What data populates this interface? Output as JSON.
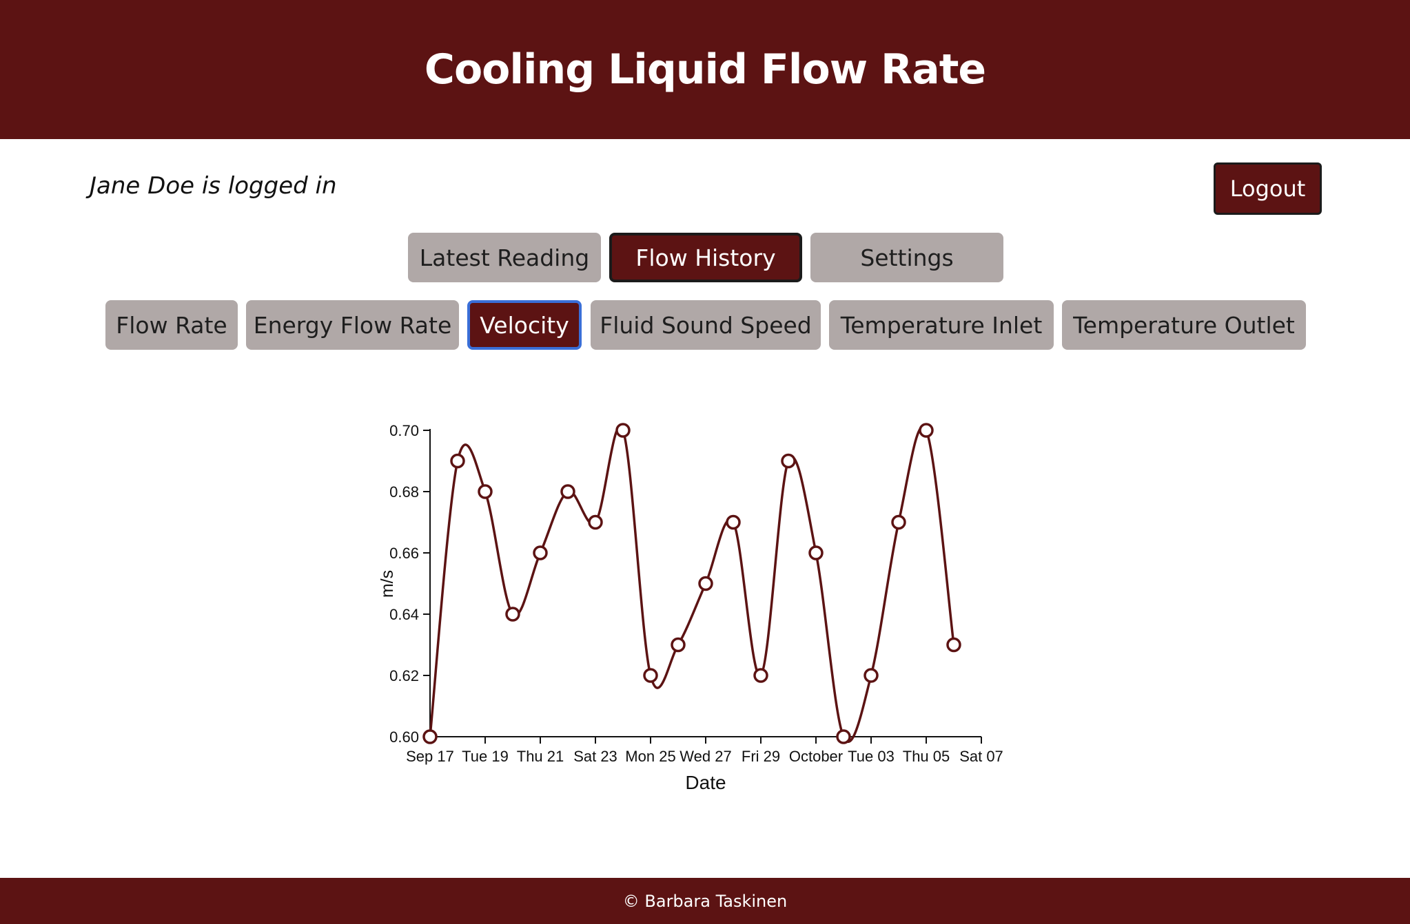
{
  "header": {
    "title": "Cooling Liquid Flow Rate"
  },
  "user": {
    "status_text": "Jane Doe is logged in",
    "logout_label": "Logout"
  },
  "main_tabs": [
    {
      "label": "Latest Reading",
      "active": false
    },
    {
      "label": "Flow History",
      "active": true
    },
    {
      "label": "Settings",
      "active": false
    }
  ],
  "metric_tabs": [
    {
      "label": "Flow Rate",
      "active": false
    },
    {
      "label": "Energy Flow Rate",
      "active": false
    },
    {
      "label": "Velocity",
      "active": true
    },
    {
      "label": "Fluid Sound Speed",
      "active": false
    },
    {
      "label": "Temperature Inlet",
      "active": false
    },
    {
      "label": "Temperature Outlet",
      "active": false
    }
  ],
  "colors": {
    "brand": "#5c1313",
    "inactive_button": "#b0a8a7",
    "focus_outline": "#3a6fd8"
  },
  "chart_data": {
    "type": "line",
    "xlabel": "Date",
    "ylabel": "m/s",
    "ylim": [
      0.6,
      0.7
    ],
    "yticks": [
      "0.60",
      "0.62",
      "0.64",
      "0.66",
      "0.68",
      "0.70"
    ],
    "xticks": [
      "Sep 17",
      "Tue 19",
      "Thu 21",
      "Sat 23",
      "Mon 25",
      "Wed 27",
      "Fri 29",
      "October",
      "Tue 03",
      "Thu 05",
      "Sat 07"
    ],
    "x": [
      "2023-09-17",
      "2023-09-18",
      "2023-09-19",
      "2023-09-20",
      "2023-09-21",
      "2023-09-22",
      "2023-09-23",
      "2023-09-24",
      "2023-09-25",
      "2023-09-26",
      "2023-09-27",
      "2023-09-28",
      "2023-09-29",
      "2023-09-30",
      "2023-10-01",
      "2023-10-02",
      "2023-10-03",
      "2023-10-04",
      "2023-10-05",
      "2023-10-06"
    ],
    "values": [
      0.6,
      0.69,
      0.68,
      0.64,
      0.66,
      0.68,
      0.67,
      0.7,
      0.62,
      0.63,
      0.65,
      0.67,
      0.62,
      0.69,
      0.66,
      0.6,
      0.62,
      0.67,
      0.7,
      0.63
    ],
    "grid": false,
    "line_color": "#5c1313"
  },
  "footer": {
    "text": "© Barbara Taskinen"
  }
}
